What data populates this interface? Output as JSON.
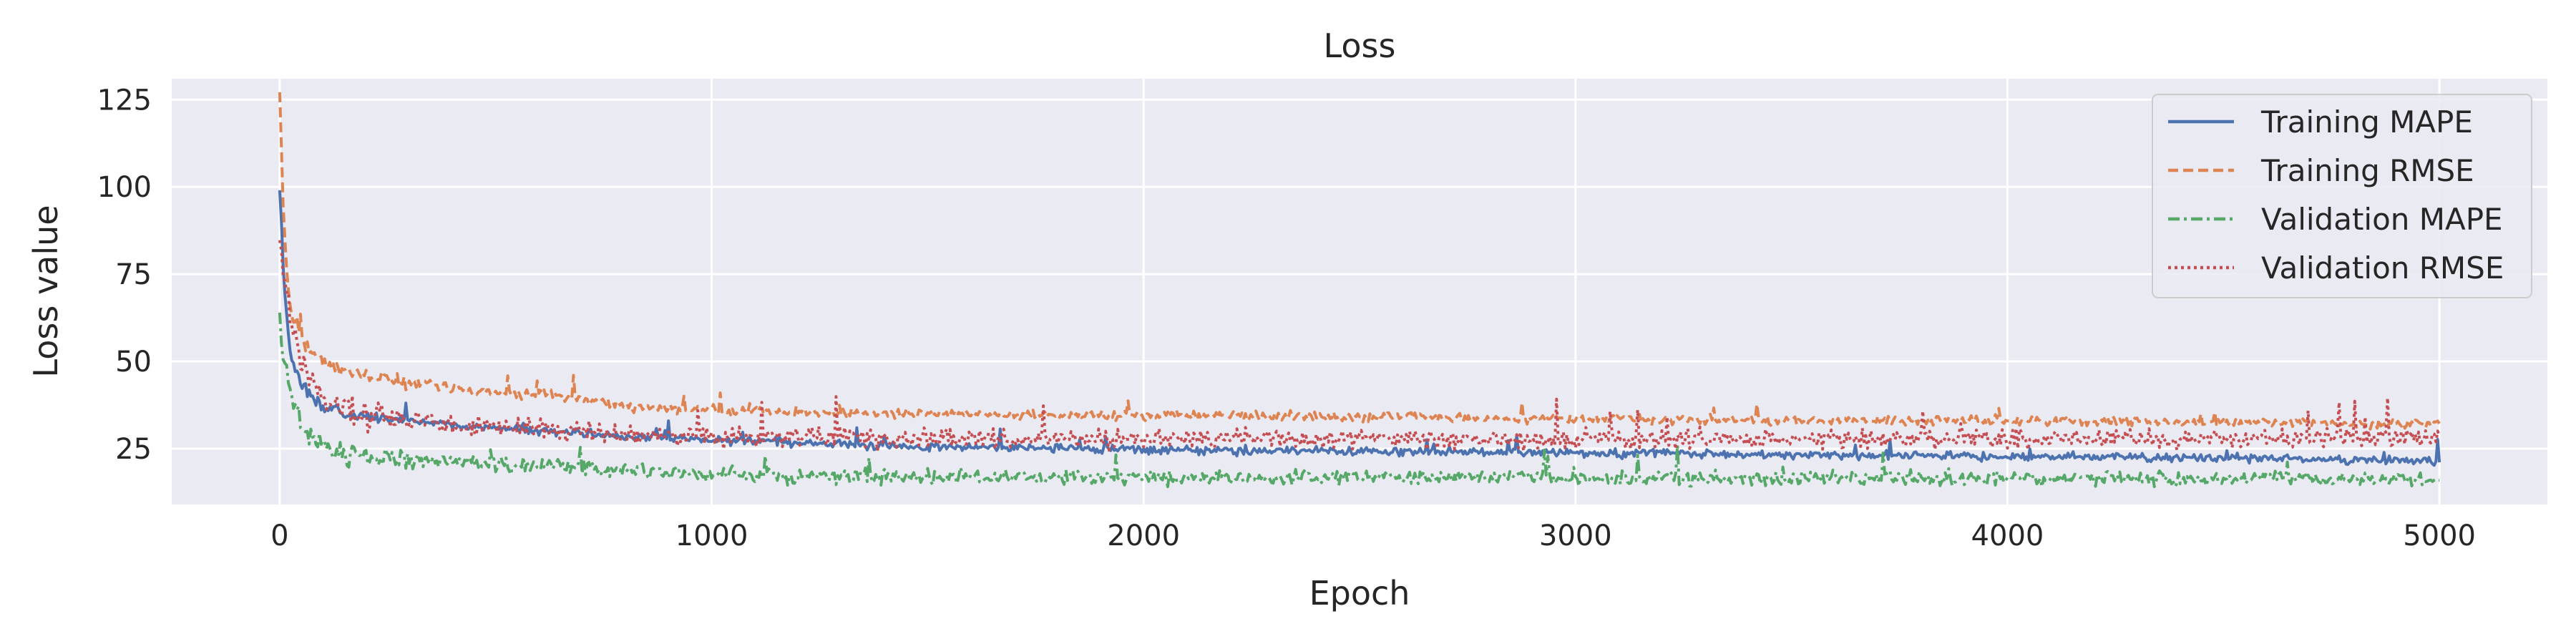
{
  "chart_data": {
    "type": "line",
    "title": "Loss",
    "xlabel": "Epoch",
    "ylabel": "Loss value",
    "xlim": [
      -250,
      5250
    ],
    "ylim": [
      9,
      131
    ],
    "xticks": [
      0,
      1000,
      2000,
      3000,
      4000,
      5000
    ],
    "xtick_labels": [
      "0",
      "1000",
      "2000",
      "3000",
      "4000",
      "5000"
    ],
    "yticks": [
      25,
      50,
      75,
      100,
      125
    ],
    "ytick_labels": [
      "25",
      "50",
      "75",
      "100",
      "125"
    ],
    "grid": true,
    "legend_position": "top-right",
    "x": [
      0,
      10,
      20,
      30,
      50,
      75,
      100,
      150,
      200,
      300,
      400,
      500,
      600,
      700,
      800,
      1000,
      1250,
      1500,
      1750,
      2000,
      2500,
      3000,
      3500,
      4000,
      4500,
      5000
    ],
    "series": [
      {
        "name": "Training MAPE",
        "color": "#4c72b0",
        "dash": "solid",
        "noise": 1.2,
        "values": [
          100,
          72,
          58,
          50,
          43,
          40,
          37,
          35,
          34,
          33,
          32,
          31,
          30,
          29.5,
          28.5,
          27.5,
          26.5,
          25.5,
          25,
          24.8,
          24.2,
          23.8,
          23.2,
          22.8,
          22.2,
          21.5
        ]
      },
      {
        "name": "Training RMSE",
        "color": "#dd8452",
        "dash": "dashed",
        "noise": 1.3,
        "values": [
          127,
          88,
          70,
          63,
          57,
          53,
          50,
          47.5,
          46,
          44,
          42.5,
          41,
          40.5,
          39.5,
          37,
          36,
          35.5,
          35,
          34.5,
          34.5,
          34,
          33.5,
          33,
          33,
          32.5,
          32
        ]
      },
      {
        "name": "Validation MAPE",
        "color": "#55a868",
        "dash": "dashdot",
        "noise": 2.0,
        "values": [
          62,
          52,
          45,
          38,
          32,
          28,
          25,
          23.5,
          22.5,
          22,
          21.5,
          20.5,
          20,
          19.5,
          18.5,
          17.5,
          17,
          17,
          16.8,
          16.8,
          16.7,
          16.6,
          16.5,
          16.5,
          16.5,
          16.3
        ]
      },
      {
        "name": "Validation RMSE",
        "color": "#c44e52",
        "dash": "dotted",
        "noise": 2.6,
        "values": [
          84,
          75,
          66,
          58,
          50,
          44,
          40,
          37,
          35,
          33,
          32,
          31,
          30.5,
          30,
          29,
          28.5,
          28.2,
          28,
          28,
          28,
          27.8,
          27.7,
          27.7,
          27.8,
          28,
          28.2
        ]
      }
    ]
  }
}
